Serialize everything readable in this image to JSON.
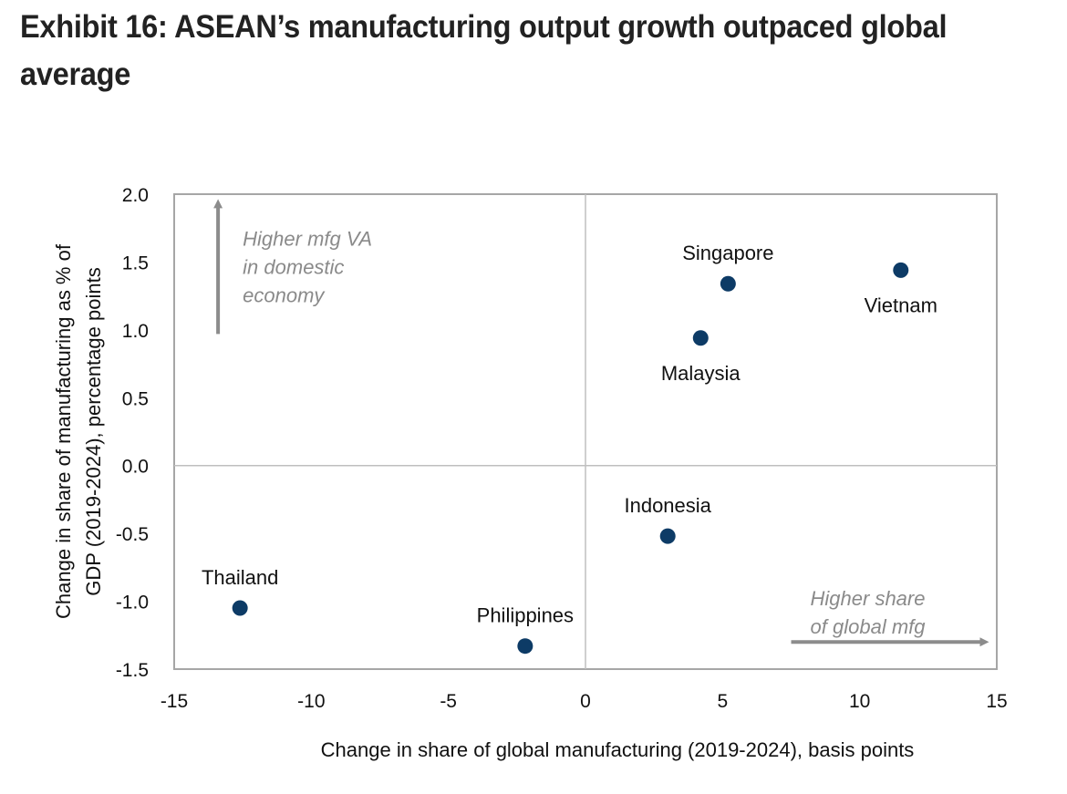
{
  "title": "Exhibit 16: ASEAN’s manufacturing output growth outpaced global average",
  "colors": {
    "point": "#0d3b66",
    "frame": "#a6a6a6",
    "annotation": "#8a8a8a",
    "arrow": "#8c8c8c"
  },
  "chart_data": {
    "type": "scatter",
    "title": "Exhibit 16: ASEAN’s manufacturing output growth outpaced global average",
    "xlabel": "Change in share of global manufacturing (2019-2024), basis points",
    "ylabel_lines": [
      "Change in share of manufacturing as % of",
      "GDP (2019-2024), percentage points"
    ],
    "xlim": [
      -15,
      15
    ],
    "ylim": [
      -1.5,
      2.0
    ],
    "xticks": [
      -15,
      -10,
      -5,
      0,
      5,
      10,
      15
    ],
    "xtick_labels": [
      "-15",
      "-10",
      "-5",
      "0",
      "5",
      "10",
      "15"
    ],
    "yticks": [
      2.0,
      1.5,
      1.0,
      0.5,
      0.0,
      -0.5,
      -1.0,
      -1.5
    ],
    "ytick_labels": [
      "2.0",
      "1.5",
      "1.0",
      "0.5",
      "0.0",
      "-0.5",
      "-1.0",
      "-1.5"
    ],
    "grid": false,
    "reference_lines": {
      "x": 0,
      "y": 0
    },
    "points": [
      {
        "label": "Singapore",
        "x": 5.2,
        "y": 1.34,
        "label_pos": "above"
      },
      {
        "label": "Vietnam",
        "x": 11.5,
        "y": 1.44,
        "label_pos": "below"
      },
      {
        "label": "Malaysia",
        "x": 4.2,
        "y": 0.94,
        "label_pos": "below"
      },
      {
        "label": "Indonesia",
        "x": 3.0,
        "y": -0.52,
        "label_pos": "above"
      },
      {
        "label": "Thailand",
        "x": -12.6,
        "y": -1.05,
        "label_pos": "above"
      },
      {
        "label": "Philippines",
        "x": -2.2,
        "y": -1.33,
        "label_pos": "above"
      }
    ],
    "annotations": [
      {
        "id": "up",
        "lines": [
          "Higher mfg VA",
          "in domestic",
          "economy"
        ],
        "arrow": "up"
      },
      {
        "id": "right",
        "lines": [
          "Higher share",
          "of global mfg"
        ],
        "arrow": "right"
      }
    ]
  }
}
